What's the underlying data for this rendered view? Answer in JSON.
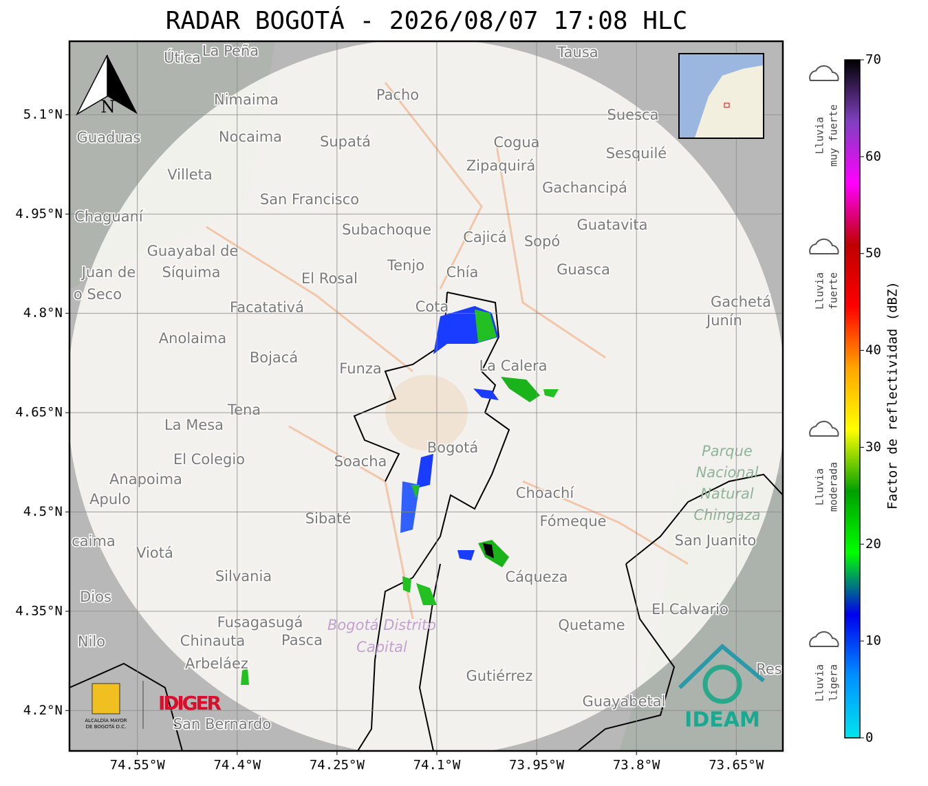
{
  "title": "RADAR BOGOTÁ - 2026/08/07 17:08 HLC",
  "map": {
    "xlim": [
      -74.652,
      -73.58
    ],
    "ylim": [
      4.139,
      5.211
    ],
    "xticks": [
      {
        "value": -74.55,
        "label": "74.55°W"
      },
      {
        "value": -74.4,
        "label": "74.4°W"
      },
      {
        "value": -74.25,
        "label": "74.25°W"
      },
      {
        "value": -74.1,
        "label": "74.1°W"
      },
      {
        "value": -73.95,
        "label": "73.95°W"
      },
      {
        "value": -73.8,
        "label": "73.8°W"
      },
      {
        "value": -73.65,
        "label": "73.65°W"
      }
    ],
    "yticks": [
      {
        "value": 5.1,
        "label": "5.1°N"
      },
      {
        "value": 4.95,
        "label": "4.95°N"
      },
      {
        "value": 4.8,
        "label": "4.8°N"
      },
      {
        "value": 4.65,
        "label": "4.65°N"
      },
      {
        "value": 4.5,
        "label": "4.5°N"
      },
      {
        "value": 4.35,
        "label": "4.35°N"
      },
      {
        "value": 4.2,
        "label": "4.2°N"
      }
    ],
    "grid": true,
    "north": "N",
    "places": [
      "Útica",
      "La Peña",
      "Tausa",
      "Nimaima",
      "Pacho",
      "Suesca",
      "Guaduas",
      "Nocaima",
      "Supatá",
      "Cogua",
      "Sesquilé",
      "Zipaquirá",
      "Villeta",
      "Gachancipá",
      "San Francisco",
      "Chaguaní",
      "Guatavita",
      "Subachoque",
      "Cajicá",
      "Sopó",
      "Guayabal de",
      "Síquima",
      "Tenjo",
      "Chía",
      "Guasca",
      "Juan de",
      "o Seco",
      "El Rosal",
      "Facatativá",
      "Cota",
      "Gachetá",
      "Junín",
      "Anolaima",
      "Bojacá",
      "La Calera",
      "Funza",
      "Tena",
      "La Mesa",
      "El Colegio",
      "Soacha",
      "Bogotá",
      "Anapoima",
      "Apulo",
      "Choachí",
      "Sibaté",
      "Fómeque",
      "San Juanito",
      "caima",
      "Viotá",
      "Cáqueza",
      "Silvania",
      "Dios",
      "El Calvario",
      "Fusagasugá",
      "Quetame",
      "Nilo",
      "Chinauta",
      "Pasca",
      "Arbeláez",
      "Gutiérrez",
      "Res",
      "Guayabetal",
      "San Bernardo"
    ],
    "park": [
      "Parque",
      "Nacional",
      "Natural",
      "Chingaza"
    ],
    "district": [
      "Bogotá Distrito",
      "Capital"
    ]
  },
  "logos": {
    "idiger": "IDIGER",
    "alcaldia": [
      "ALCALDÍA MAYOR",
      "DE BOGOTÁ D.C."
    ],
    "ideam": "IDEAM"
  },
  "colorbar": {
    "label": "Factor de reflectividad (dBZ)",
    "range": [
      0,
      70
    ],
    "ticks": [
      0,
      10,
      20,
      30,
      40,
      50,
      60,
      70
    ],
    "colors": [
      "#00e5ee",
      "#0090ff",
      "#0000ee",
      "#00ff00",
      "#00a000",
      "#ffff00",
      "#ffa500",
      "#ff0000",
      "#c00000",
      "#ff00ff",
      "#8040c0",
      "#000000"
    ]
  },
  "rain_levels": [
    [
      "Lluvia",
      "muy fuerte"
    ],
    [
      "Lluvia",
      "fuerte"
    ],
    [
      "Lluvia",
      "moderada"
    ],
    [
      "Lluvia",
      "ligera"
    ]
  ]
}
